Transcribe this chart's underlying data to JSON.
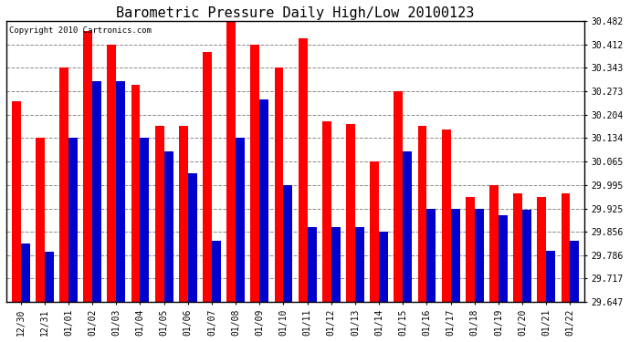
{
  "title": "Barometric Pressure Daily High/Low 20100123",
  "copyright": "Copyright 2010 Cartronics.com",
  "dates": [
    "12/30",
    "12/31",
    "01/01",
    "01/02",
    "01/03",
    "01/04",
    "01/05",
    "01/06",
    "01/07",
    "01/08",
    "01/09",
    "01/10",
    "01/11",
    "01/12",
    "01/13",
    "01/14",
    "01/15",
    "01/16",
    "01/17",
    "01/18",
    "01/19",
    "01/20",
    "01/21",
    "01/22"
  ],
  "highs": [
    30.243,
    30.134,
    30.343,
    30.452,
    30.412,
    30.293,
    30.17,
    30.17,
    30.39,
    30.482,
    30.412,
    30.343,
    30.43,
    30.185,
    30.175,
    30.065,
    30.273,
    30.17,
    30.16,
    29.96,
    29.995,
    29.97,
    29.96,
    29.97
  ],
  "lows": [
    29.82,
    29.795,
    30.134,
    30.303,
    30.303,
    30.134,
    30.095,
    30.03,
    29.83,
    30.134,
    30.25,
    29.995,
    29.87,
    29.87,
    29.87,
    29.855,
    30.095,
    29.925,
    29.925,
    29.925,
    29.905,
    29.92,
    29.8,
    29.83
  ],
  "ymin": 29.647,
  "ymax": 30.482,
  "yticks": [
    29.647,
    29.717,
    29.786,
    29.856,
    29.925,
    29.995,
    30.065,
    30.134,
    30.204,
    30.273,
    30.343,
    30.412,
    30.482
  ],
  "bar_width": 0.38,
  "high_color": "#ff0000",
  "low_color": "#0000cc",
  "bg_color": "#ffffff",
  "grid_color": "#888888",
  "title_fontsize": 11,
  "tick_fontsize": 7,
  "copyright_fontsize": 6.5
}
